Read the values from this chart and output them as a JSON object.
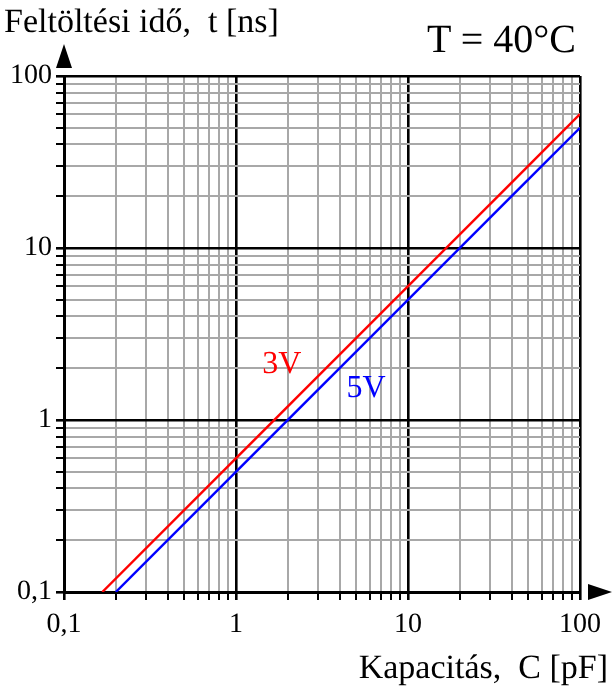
{
  "chart_data": {
    "type": "line",
    "ylabel": "Feltöltési idő,  t [ns]",
    "xlabel": "Kapacitás,  C [pF]",
    "annotations": [
      "T = 40°C"
    ],
    "log": "xy",
    "grid": true,
    "legend": false,
    "marker": "none",
    "line_style": "solid",
    "xlim": [
      0.1,
      100
    ],
    "ylim": [
      0.1,
      100
    ],
    "xticks": [
      {
        "value": 0.1,
        "label": "0,1"
      },
      {
        "value": 0.2,
        "label": null
      },
      {
        "value": 0.3,
        "label": null
      },
      {
        "value": 0.4,
        "label": null
      },
      {
        "value": 0.5,
        "label": null
      },
      {
        "value": 0.6,
        "label": null
      },
      {
        "value": 0.7,
        "label": null
      },
      {
        "value": 0.8,
        "label": null
      },
      {
        "value": 0.9,
        "label": null
      },
      1,
      {
        "value": 2,
        "label": null
      },
      {
        "value": 3,
        "label": null
      },
      {
        "value": 4,
        "label": null
      },
      {
        "value": 5,
        "label": null
      },
      {
        "value": 6,
        "label": null
      },
      {
        "value": 7,
        "label": null
      },
      {
        "value": 8,
        "label": null
      },
      {
        "value": 9,
        "label": null
      },
      10,
      {
        "value": 20,
        "label": null
      },
      {
        "value": 30,
        "label": null
      },
      {
        "value": 40,
        "label": null
      },
      {
        "value": 50,
        "label": null
      },
      {
        "value": 60,
        "label": null
      },
      {
        "value": 70,
        "label": null
      },
      {
        "value": 80,
        "label": null
      },
      {
        "value": 90,
        "label": null
      },
      100
    ],
    "yticks": [
      {
        "value": 0.1,
        "label": "0,1"
      },
      {
        "value": 0.2,
        "label": null
      },
      {
        "value": 0.3,
        "label": null
      },
      {
        "value": 0.4,
        "label": null
      },
      {
        "value": 0.5,
        "label": null
      },
      {
        "value": 0.6,
        "label": null
      },
      {
        "value": 0.7,
        "label": null
      },
      {
        "value": 0.8,
        "label": null
      },
      {
        "value": 0.9,
        "label": null
      },
      1,
      {
        "value": 2,
        "label": null
      },
      {
        "value": 3,
        "label": null
      },
      {
        "value": 4,
        "label": null
      },
      {
        "value": 5,
        "label": null
      },
      {
        "value": 6,
        "label": null
      },
      {
        "value": 7,
        "label": null
      },
      {
        "value": 8,
        "label": null
      },
      {
        "value": 9,
        "label": null
      },
      10,
      {
        "value": 20,
        "label": null
      },
      {
        "value": 30,
        "label": null
      },
      {
        "value": 40,
        "label": null
      },
      {
        "value": 50,
        "label": null
      },
      {
        "value": 60,
        "label": null
      },
      {
        "value": 70,
        "label": null
      },
      {
        "value": 80,
        "label": null
      },
      {
        "value": 90,
        "label": null
      },
      100
    ],
    "series": [
      {
        "name": "3V",
        "color": "#ff0000",
        "x": [
          0.167,
          100
        ],
        "values": [
          0.1,
          60
        ]
      },
      {
        "name": "5V",
        "color": "#0000ff",
        "x": [
          0.2,
          100
        ],
        "values": [
          0.1,
          50
        ]
      }
    ]
  }
}
